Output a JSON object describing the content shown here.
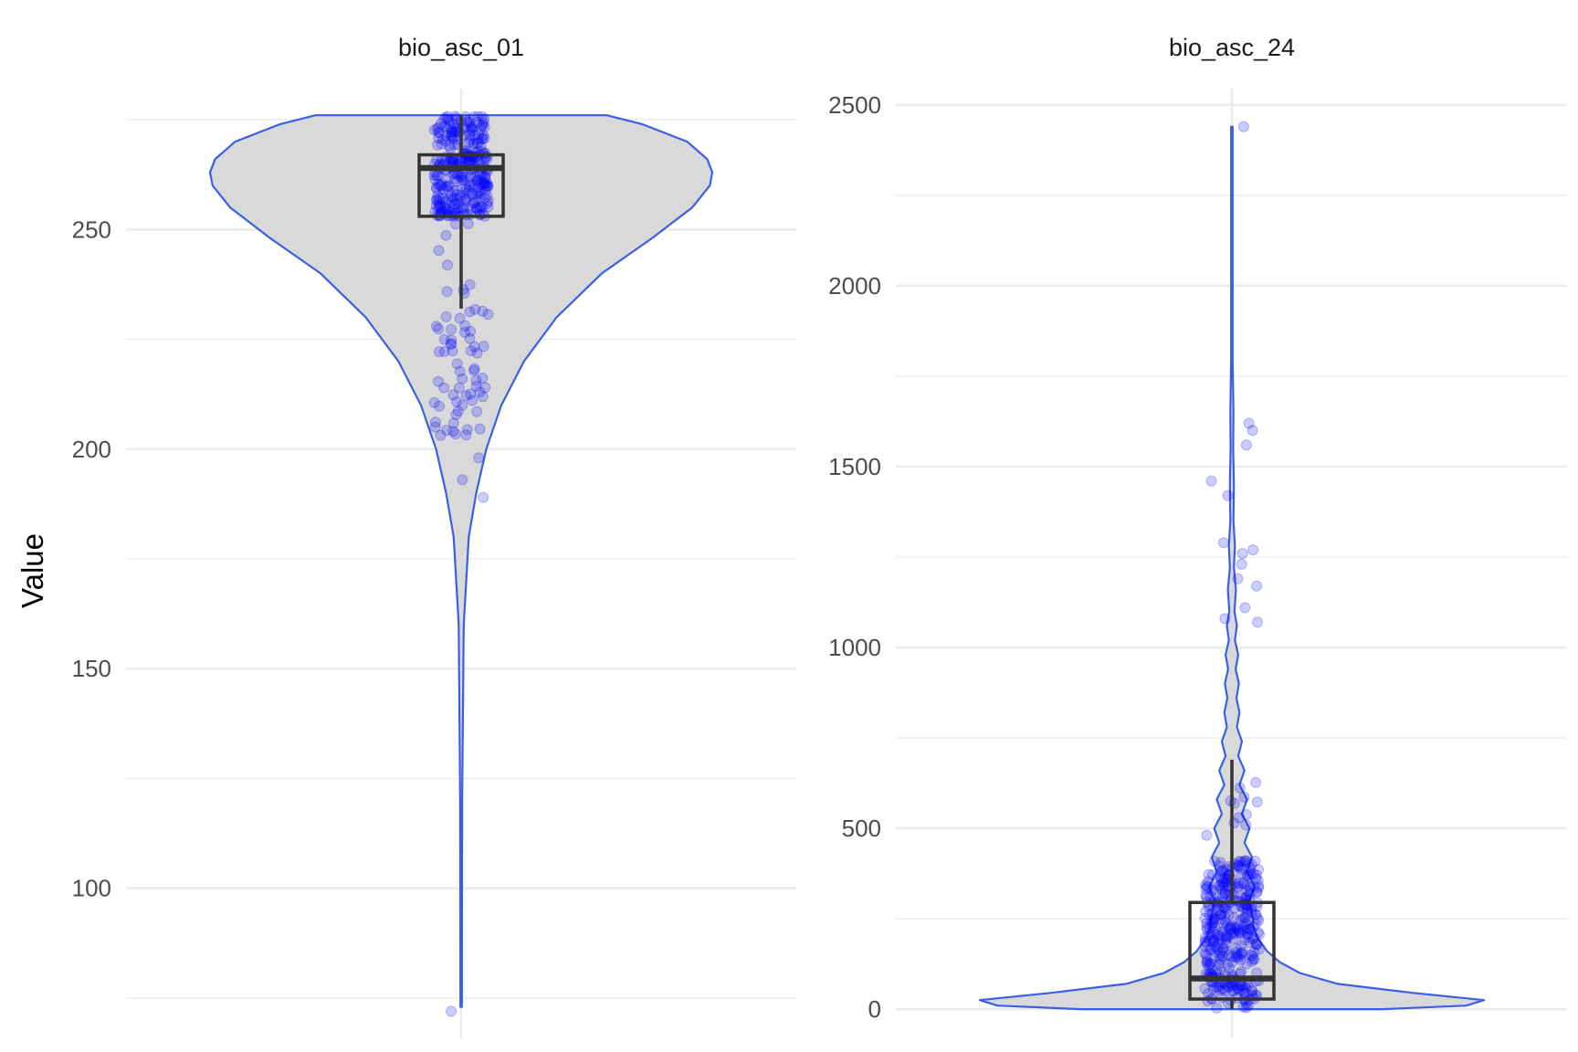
{
  "y_axis_title": "Value",
  "colors": {
    "violin_fill": "#d9d9d9",
    "violin_outline": "#3a5fe5",
    "points": "#0000ff",
    "boxplot": "#333333",
    "grid": "#ebebeb"
  },
  "chart_data": {
    "type": "violin",
    "ylabel": "Value",
    "panels": [
      {
        "title": "bio_asc_01",
        "ylim": [
          70,
          280
        ],
        "y_ticks": [
          100,
          150,
          200,
          250
        ],
        "y_tick_labels": [
          "100",
          "150",
          "200",
          "250"
        ],
        "y_minor_ticks": [
          75,
          125,
          175,
          225,
          275
        ],
        "box": {
          "lower_whisker": 232,
          "q1": 253,
          "median": 264,
          "q3": 267,
          "upper_whisker": 276
        },
        "violin": {
          "y": [
            73,
            120,
            160,
            180,
            190,
            200,
            210,
            220,
            230,
            240,
            248,
            255,
            260,
            263,
            266,
            270,
            274,
            276
          ],
          "width": [
            0.003,
            0.004,
            0.01,
            0.03,
            0.06,
            0.1,
            0.16,
            0.25,
            0.38,
            0.56,
            0.76,
            0.92,
            0.99,
            1.0,
            0.98,
            0.9,
            0.72,
            0.58
          ]
        },
        "points": {
          "count": 360,
          "outliers": [
            72,
            189,
            193,
            198,
            204,
            205
          ]
        }
      },
      {
        "title": "bio_asc_24",
        "ylim": [
          -30,
          2520
        ],
        "y_ticks": [
          0,
          500,
          1000,
          1500,
          2000,
          2500
        ],
        "y_tick_labels": [
          "0",
          "500",
          "1000",
          "1500",
          "2000",
          "2500"
        ],
        "y_minor_ticks": [
          250,
          750,
          1250,
          1750,
          2250
        ],
        "box": {
          "lower_whisker": 0,
          "q1": 28,
          "median": 85,
          "q3": 295,
          "upper_whisker": 690
        },
        "violin": {
          "y": [
            0,
            10,
            25,
            45,
            70,
            100,
            130,
            160,
            200,
            230,
            260,
            300,
            340,
            380,
            420,
            460,
            500,
            540,
            580,
            620,
            660,
            700,
            740,
            780,
            820,
            860,
            900,
            940,
            980,
            1020,
            1060,
            1100,
            1160,
            1220,
            1280,
            1350,
            1450,
            1550,
            1650,
            1800,
            2000,
            2200,
            2440
          ],
          "width": [
            0.6,
            0.93,
            1.0,
            0.72,
            0.42,
            0.27,
            0.19,
            0.14,
            0.1,
            0.085,
            0.08,
            0.07,
            0.09,
            0.06,
            0.08,
            0.05,
            0.07,
            0.04,
            0.06,
            0.03,
            0.05,
            0.025,
            0.04,
            0.02,
            0.03,
            0.018,
            0.028,
            0.015,
            0.025,
            0.012,
            0.02,
            0.01,
            0.016,
            0.008,
            0.012,
            0.006,
            0.008,
            0.005,
            0.006,
            0.003,
            0.003,
            0.003,
            0.003
          ]
        },
        "points": {
          "count": 360,
          "outliers": [
            1600,
            1620,
            1560,
            1460,
            1420,
            1290,
            1270,
            1260,
            1230,
            1190,
            1170,
            1110,
            1080,
            1070,
            2440
          ]
        }
      }
    ]
  }
}
